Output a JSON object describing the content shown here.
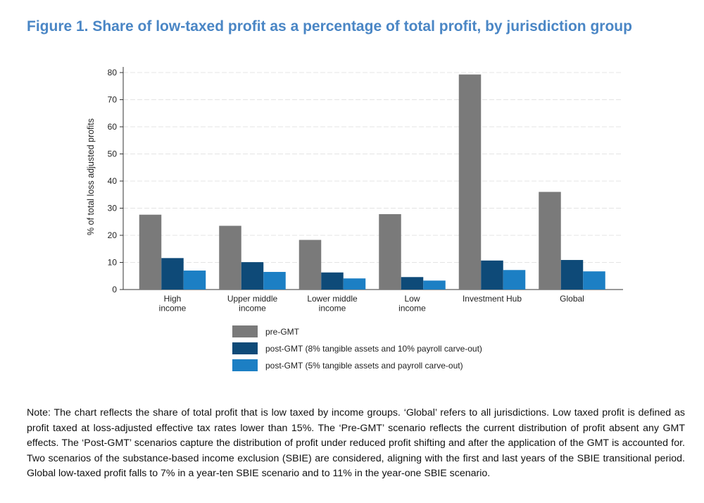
{
  "figure_title": "Figure 1. Share of low-taxed profit as a percentage of total profit, by jurisdiction group",
  "colors": {
    "title": "#4a86c5",
    "series": [
      "#7a7a7a",
      "#0e4a78",
      "#1c7fc4"
    ]
  },
  "chart_data": {
    "type": "bar",
    "title": "",
    "xlabel": "",
    "ylabel": "% of total loss adjusted profits",
    "ylim": [
      0,
      80
    ],
    "yticks": [
      0,
      10,
      20,
      30,
      40,
      50,
      60,
      70,
      80
    ],
    "grid": true,
    "legend_position": "bottom",
    "categories": [
      [
        "High",
        "income"
      ],
      [
        "Upper middle",
        "income"
      ],
      [
        "Lower middle",
        "income"
      ],
      [
        "Low",
        "income"
      ],
      [
        "Investment Hub"
      ],
      [
        "Global"
      ]
    ],
    "series": [
      {
        "name": "pre-GMT",
        "values": [
          27.6,
          23.5,
          18.3,
          27.8,
          79.3,
          36.0
        ]
      },
      {
        "name": "post-GMT (8% tangible assets and 10% payroll carve-out)",
        "values": [
          11.6,
          10.1,
          6.3,
          4.6,
          10.7,
          10.9
        ]
      },
      {
        "name": "post-GMT (5% tangible assets and payroll carve-out)",
        "values": [
          7.0,
          6.5,
          4.1,
          3.3,
          7.2,
          6.7
        ]
      }
    ]
  },
  "note": "Note: The chart reflects the share of total profit that is low taxed by income groups. ‘Global’ refers to all jurisdictions. Low taxed profit is defined as profit taxed at loss-adjusted effective tax rates lower than 15%. The ‘Pre-GMT’ scenario reflects the current distribution of profit absent any GMT effects. The ‘Post-GMT’ scenarios capture the distribution of profit under reduced profit shifting and after the application of the GMT is accounted for. Two scenarios of the substance-based income exclusion (SBIE) are considered, aligning with the first and last years of the SBIE transitional period. Global low-taxed profit falls to 7% in a year-ten SBIE scenario and to 11% in the year-one SBIE scenario."
}
